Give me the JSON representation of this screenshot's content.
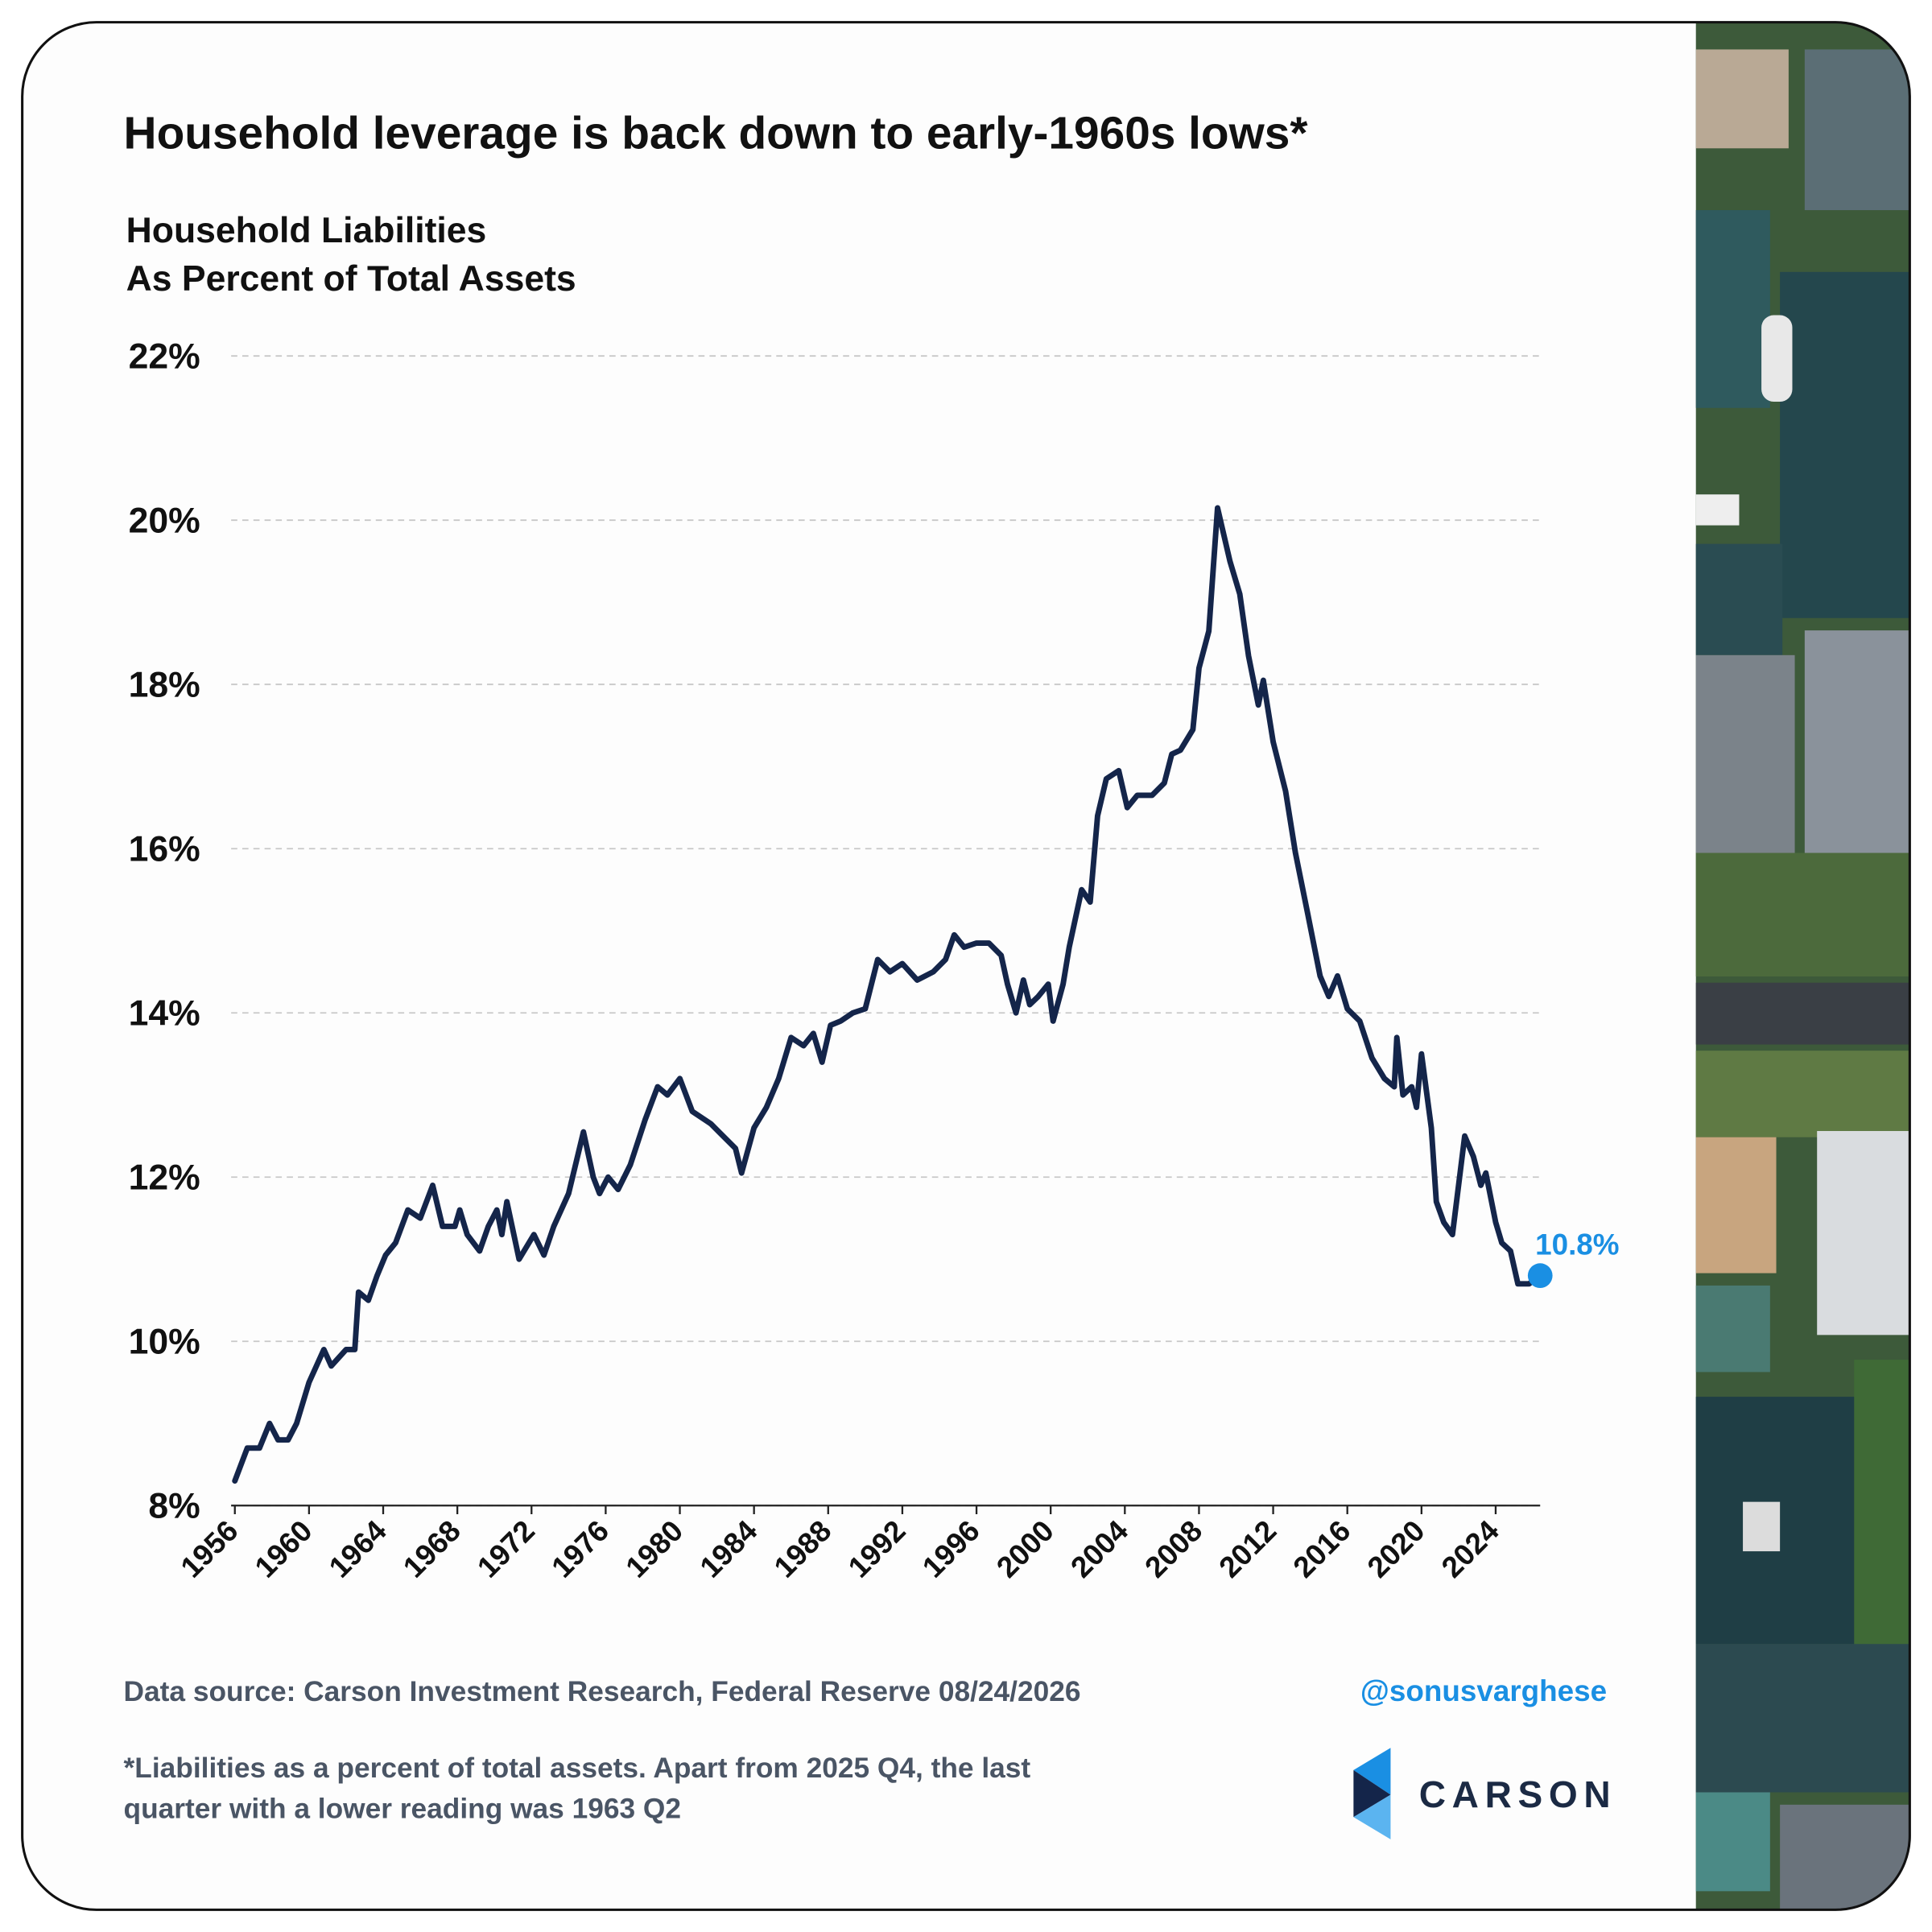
{
  "chart_data": {
    "type": "line",
    "title": "Household leverage is back down to early-1960s lows*",
    "subtitle": [
      "Household Liabilities",
      "As Percent of Total Assets"
    ],
    "x": [
      1956.0,
      1956.67,
      1957.33,
      1957.87,
      1958.33,
      1958.87,
      1959.33,
      1960.0,
      1960.8,
      1961.2,
      1962.0,
      1962.47,
      1962.67,
      1963.2,
      1963.67,
      1964.13,
      1964.67,
      1965.33,
      1966.0,
      1966.67,
      1967.2,
      1967.87,
      1968.13,
      1968.53,
      1969.2,
      1969.67,
      1970.13,
      1970.4,
      1970.67,
      1971.33,
      1972.13,
      1972.67,
      1973.2,
      1974.0,
      1974.8,
      1975.33,
      1975.67,
      1976.13,
      1976.67,
      1977.33,
      1978.13,
      1978.8,
      1979.33,
      1980.0,
      1980.67,
      1981.67,
      1982.33,
      1983.0,
      1983.33,
      1984.0,
      1984.67,
      1985.33,
      1986.0,
      1986.67,
      1987.2,
      1987.67,
      1988.13,
      1988.67,
      1989.33,
      1990.0,
      1990.67,
      1991.33,
      1992.0,
      1992.8,
      1993.67,
      1994.33,
      1994.8,
      1995.33,
      1996.0,
      1996.67,
      1997.33,
      1997.67,
      1998.13,
      1998.53,
      1998.87,
      1999.33,
      1999.87,
      2000.13,
      2000.67,
      2001.0,
      2001.67,
      2002.13,
      2002.53,
      2003.0,
      2003.67,
      2004.13,
      2004.67,
      2005.47,
      2006.13,
      2006.53,
      2007.0,
      2007.67,
      2008.0,
      2008.53,
      2009.0,
      2009.67,
      2010.2,
      2010.67,
      2011.2,
      2011.47,
      2012.0,
      2012.67,
      2013.2,
      2013.87,
      2014.53,
      2015.0,
      2015.47,
      2016.0,
      2016.67,
      2017.33,
      2018.0,
      2018.53,
      2018.67,
      2019.0,
      2019.47,
      2019.73,
      2020.0,
      2020.53,
      2020.8,
      2021.2,
      2021.67,
      2022.0,
      2022.33,
      2022.8,
      2023.2,
      2023.47,
      2024.0,
      2024.33,
      2024.8,
      2025.2,
      2025.8,
      2026.4
    ],
    "series": [
      {
        "color": "#14254a",
        "values": [
          8.3,
          8.7,
          8.7,
          9.0,
          8.8,
          8.8,
          9.0,
          9.5,
          9.9,
          9.7,
          9.9,
          9.9,
          10.6,
          10.5,
          10.8,
          11.05,
          11.2,
          11.6,
          11.5,
          11.9,
          11.4,
          11.4,
          11.6,
          11.3,
          11.1,
          11.4,
          11.6,
          11.3,
          11.7,
          11.0,
          11.3,
          11.05,
          11.4,
          11.8,
          12.55,
          12.0,
          11.8,
          12.0,
          11.85,
          12.15,
          12.7,
          13.1,
          13.0,
          13.2,
          12.8,
          12.65,
          12.5,
          12.35,
          12.05,
          12.6,
          12.85,
          13.2,
          13.7,
          13.6,
          13.75,
          13.4,
          13.85,
          13.9,
          14.0,
          14.05,
          14.65,
          14.5,
          14.6,
          14.4,
          14.5,
          14.65,
          14.95,
          14.8,
          14.85,
          14.85,
          14.7,
          14.35,
          14.0,
          14.4,
          14.1,
          14.2,
          14.35,
          13.9,
          14.35,
          14.8,
          15.5,
          15.35,
          16.4,
          16.85,
          16.95,
          16.5,
          16.65,
          16.65,
          16.8,
          17.15,
          17.2,
          17.45,
          18.2,
          18.65,
          20.15,
          19.5,
          19.1,
          18.35,
          17.75,
          18.05,
          17.3,
          16.7,
          15.95,
          15.2,
          14.45,
          14.2,
          14.45,
          14.05,
          13.9,
          13.45,
          13.2,
          13.1,
          13.7,
          13.0,
          13.1,
          12.85,
          13.5,
          12.6,
          11.7,
          11.45,
          11.3,
          11.9,
          12.5,
          12.25,
          11.9,
          12.05,
          11.45,
          11.2,
          11.1,
          10.7,
          10.7,
          10.8
        ],
        "value_labels": [
          null,
          null,
          null,
          null,
          null,
          null,
          null,
          null,
          null,
          null,
          null,
          null,
          null,
          null,
          null,
          null,
          null,
          null,
          null,
          null,
          null,
          null,
          null,
          null,
          null,
          null,
          null,
          null,
          null,
          null,
          null,
          null,
          null,
          null,
          null,
          null,
          null,
          null,
          null,
          null,
          null,
          null,
          null,
          null,
          null,
          null,
          null,
          null,
          null,
          null,
          null,
          null,
          null,
          null,
          null,
          null,
          null,
          null,
          null,
          null,
          null,
          null,
          null,
          null,
          null,
          null,
          null,
          null,
          null,
          null,
          null,
          null,
          null,
          null,
          null,
          null,
          null,
          null,
          null,
          null,
          null,
          null,
          null,
          null,
          null,
          null,
          null,
          null,
          null,
          null,
          null,
          null,
          null,
          null,
          null,
          null,
          null,
          null,
          null,
          null,
          null,
          null,
          null,
          null,
          null,
          null,
          null,
          null,
          null,
          null,
          null,
          null,
          null,
          null,
          null,
          null,
          null,
          null,
          null,
          null,
          null,
          null,
          null,
          null,
          null,
          null,
          null,
          null,
          null,
          null,
          null,
          "10.8%"
        ],
        "end_color": "#1a8fe3"
      }
    ],
    "xlim": [
      1955.8,
      2026.4
    ],
    "xticks": [
      1956,
      1960,
      1964,
      1968,
      1972,
      1976,
      1980,
      1984,
      1988,
      1992,
      1996,
      2000,
      2004,
      2008,
      2012,
      2016,
      2020,
      2024
    ],
    "ylim": [
      8,
      22
    ],
    "yticks": [
      {
        "value": 8,
        "label": "8%"
      },
      {
        "value": 10,
        "label": "10%"
      },
      {
        "value": 12,
        "label": "12%"
      },
      {
        "value": 14,
        "label": "14%"
      },
      {
        "value": 16,
        "label": "16%"
      },
      {
        "value": 18,
        "label": "18%"
      },
      {
        "value": 20,
        "label": "20%"
      },
      {
        "value": 22,
        "label": "22%"
      }
    ],
    "grid": true
  },
  "footer": {
    "source": "Data source: Carson Investment Research, Federal Reserve  08/24/2026",
    "handle": "@sonusvarghese",
    "note": [
      "*Liabilities as a percent of total assets. Apart from 2025 Q4, the last",
      "quarter with a lower reading was 1963 Q2"
    ],
    "brand": "CARSON"
  }
}
